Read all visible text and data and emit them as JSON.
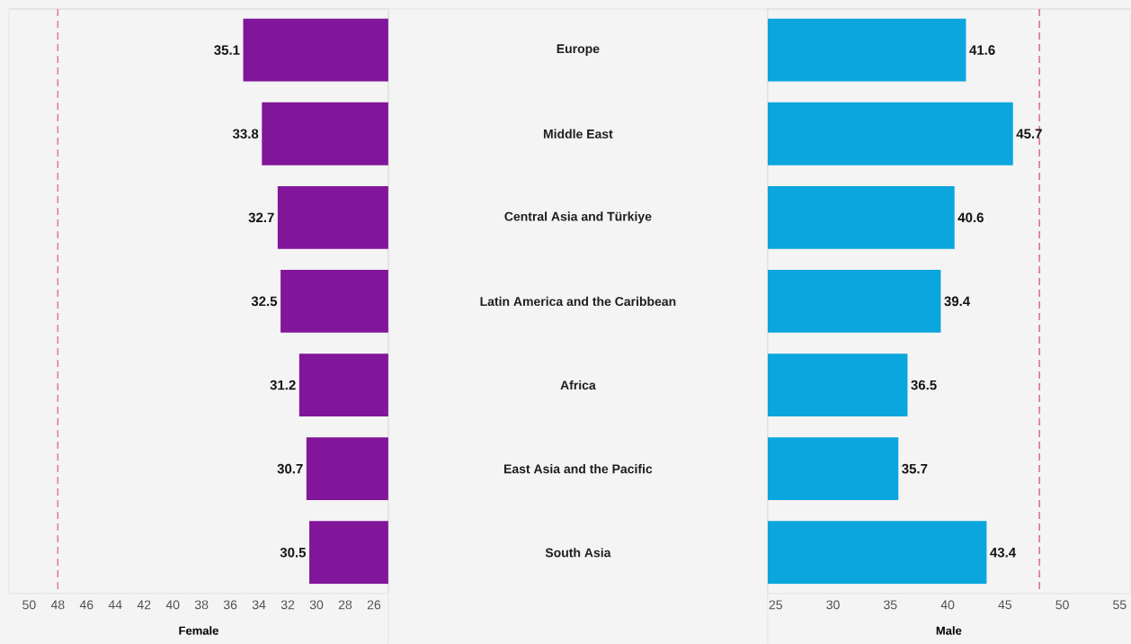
{
  "chart_data": [
    {
      "type": "bar",
      "orientation": "horizontal",
      "xlabel": "Female",
      "categories": [
        "Europe",
        "Middle East",
        "Central Asia and Türkiye",
        "Latin America and the Caribbean",
        "Africa",
        "East Asia and the Pacific",
        "South Asia"
      ],
      "values": [
        35.1,
        33.8,
        32.7,
        32.5,
        31.2,
        30.7,
        30.5
      ],
      "color": "#82169a",
      "xlim": [
        51.4,
        25
      ],
      "xticks": [
        50,
        48,
        46,
        44,
        42,
        40,
        38,
        36,
        34,
        32,
        30,
        28,
        26
      ],
      "data_labels": true,
      "ref_lines": [
        {
          "axis": "x",
          "value": 48,
          "color": "#e0788e",
          "line_style": "dashed"
        }
      ]
    },
    {
      "type": "bar",
      "orientation": "horizontal",
      "xlabel": "Male",
      "categories": [
        null,
        null,
        null,
        null,
        null,
        null,
        null
      ],
      "values": [
        41.6,
        45.7,
        40.6,
        39.4,
        36.5,
        35.7,
        43.4
      ],
      "color": "#0ba6dd",
      "xlim": [
        24.3,
        55.9
      ],
      "xticks": [
        25,
        30,
        35,
        40,
        45,
        50,
        55
      ],
      "data_labels": true,
      "tick_labels": "x",
      "ref_lines": [
        {
          "axis": "x",
          "value": 48,
          "color": "#e0788e",
          "line_style": "dashed"
        }
      ]
    }
  ]
}
